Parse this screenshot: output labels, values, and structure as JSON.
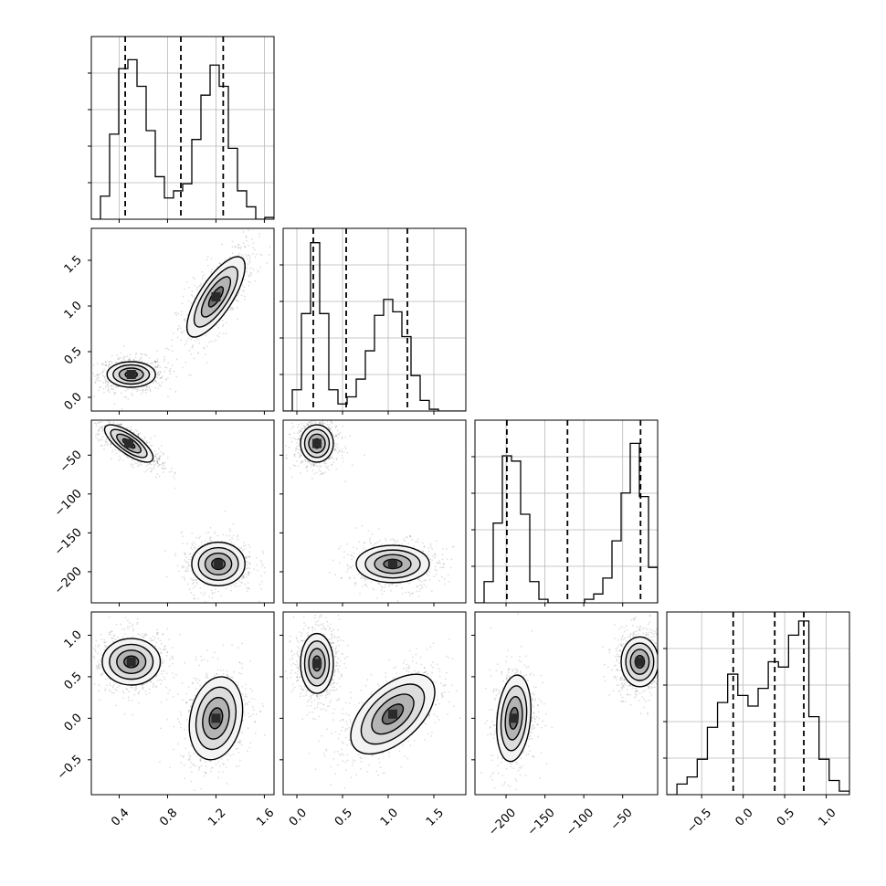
{
  "chart_data": [
    {
      "panel": "marginal-0",
      "type": "histogram",
      "x_range": [
        0.17,
        1.68
      ],
      "x_ticks": [
        0.4,
        0.8,
        1.2,
        1.6
      ],
      "x_tick_labels": [
        "0.4",
        "0.8",
        "1.2",
        "1.6"
      ],
      "y_range": [
        0,
        1
      ],
      "values": [
        0.0,
        0.13,
        0.48,
        0.85,
        0.9,
        0.75,
        0.5,
        0.24,
        0.12,
        0.16,
        0.2,
        0.45,
        0.7,
        0.87,
        0.75,
        0.4,
        0.16,
        0.07,
        0.0,
        0.01
      ],
      "quantile_lines": [
        0.45,
        0.91,
        1.26
      ],
      "grid": true
    },
    {
      "panel": "marginal-1",
      "type": "histogram",
      "x_range": [
        -0.15,
        1.85
      ],
      "x_ticks": [
        0.0,
        0.5,
        1.0,
        1.5
      ],
      "x_tick_labels": [
        "0.0",
        "0.5",
        "1.0",
        "1.5"
      ],
      "y_range": [
        0,
        1
      ],
      "values": [
        0.0,
        0.12,
        0.55,
        0.95,
        0.55,
        0.12,
        0.04,
        0.08,
        0.18,
        0.34,
        0.54,
        0.63,
        0.56,
        0.42,
        0.2,
        0.06,
        0.01,
        0.0,
        0.0,
        0.0
      ],
      "quantile_lines": [
        0.18,
        0.54,
        1.21
      ],
      "grid": true
    },
    {
      "panel": "marginal-2",
      "type": "histogram",
      "x_range": [
        -240,
        -5
      ],
      "x_ticks": [
        -200,
        -150,
        -100,
        -50
      ],
      "x_tick_labels": [
        "−200",
        "−150",
        "−100",
        "−50"
      ],
      "y_range": [
        0,
        1
      ],
      "values": [
        0.0,
        0.12,
        0.45,
        0.83,
        0.8,
        0.5,
        0.12,
        0.02,
        0.0,
        0.0,
        0.0,
        0.0,
        0.02,
        0.05,
        0.14,
        0.35,
        0.62,
        0.9,
        0.6,
        0.2
      ],
      "quantile_lines": [
        -199,
        -121,
        -27
      ],
      "grid": true
    },
    {
      "panel": "marginal-3",
      "type": "histogram",
      "x_range": [
        -0.92,
        1.28
      ],
      "x_ticks": [
        -0.5,
        0.0,
        0.5,
        1.0
      ],
      "x_tick_labels": [
        "−0.5",
        "0.0",
        "0.5",
        "1.0"
      ],
      "y_range": [
        0,
        1
      ],
      "values": [
        0.0,
        0.06,
        0.1,
        0.2,
        0.38,
        0.52,
        0.68,
        0.56,
        0.5,
        0.6,
        0.75,
        0.72,
        0.9,
        0.98,
        0.44,
        0.2,
        0.08,
        0.02
      ],
      "quantile_lines": [
        -0.12,
        0.38,
        0.73
      ],
      "grid": true
    },
    {
      "panel": "joint-1-0",
      "type": "scatter-contour",
      "x_range": [
        0.17,
        1.68
      ],
      "y_range": [
        -0.15,
        1.85
      ],
      "y_ticks": [
        0.0,
        0.5,
        1.0,
        1.5
      ],
      "y_tick_labels": [
        "0.0",
        "0.5",
        "1.0",
        "1.5"
      ],
      "modes": [
        {
          "center": [
            0.5,
            0.25
          ],
          "sigma": [
            0.1,
            0.07
          ],
          "rho": 0.0,
          "weight": 0.55
        },
        {
          "center": [
            1.2,
            1.1
          ],
          "sigma": [
            0.12,
            0.22
          ],
          "rho": 0.75,
          "weight": 0.45
        }
      ]
    },
    {
      "panel": "joint-2-0",
      "type": "scatter-contour",
      "x_range": [
        0.17,
        1.68
      ],
      "y_range": [
        -240,
        -5
      ],
      "y_ticks": [
        -50,
        -100,
        -150,
        -200
      ],
      "y_tick_labels": [
        "−50",
        "−100",
        "−150",
        "−200"
      ],
      "modes": [
        {
          "center": [
            0.48,
            -35
          ],
          "sigma": [
            0.1,
            12
          ],
          "rho": -0.75,
          "weight": 0.55
        },
        {
          "center": [
            1.22,
            -190
          ],
          "sigma": [
            0.11,
            14
          ],
          "rho": 0.0,
          "weight": 0.45
        }
      ]
    },
    {
      "panel": "joint-2-1",
      "type": "scatter-contour",
      "x_range": [
        -0.15,
        1.85
      ],
      "y_range": [
        -240,
        -5
      ],
      "modes": [
        {
          "center": [
            0.22,
            -35
          ],
          "sigma": [
            0.09,
            12
          ],
          "rho": 0.0,
          "weight": 0.55
        },
        {
          "center": [
            1.05,
            -190
          ],
          "sigma": [
            0.2,
            12
          ],
          "rho": 0.0,
          "weight": 0.45
        }
      ]
    },
    {
      "panel": "joint-3-0",
      "type": "scatter-contour",
      "x_range": [
        0.17,
        1.68
      ],
      "y_range": [
        -0.92,
        1.28
      ],
      "y_ticks": [
        1.0,
        0.5,
        0.0,
        -0.5
      ],
      "y_tick_labels": [
        "1.0",
        "0.5",
        "0.0",
        "−0.5"
      ],
      "modes": [
        {
          "center": [
            0.5,
            0.68
          ],
          "sigma": [
            0.12,
            0.14
          ],
          "rho": 0.0,
          "weight": 0.55
        },
        {
          "center": [
            1.2,
            0.0
          ],
          "sigma": [
            0.11,
            0.25
          ],
          "rho": 0.2,
          "weight": 0.45
        }
      ]
    },
    {
      "panel": "joint-3-1",
      "type": "scatter-contour",
      "x_range": [
        -0.15,
        1.85
      ],
      "y_range": [
        -0.92,
        1.28
      ],
      "modes": [
        {
          "center": [
            0.22,
            0.66
          ],
          "sigma": [
            0.09,
            0.18
          ],
          "rho": 0.0,
          "weight": 0.55
        },
        {
          "center": [
            1.05,
            0.05
          ],
          "sigma": [
            0.23,
            0.24
          ],
          "rho": 0.55,
          "weight": 0.45
        }
      ]
    },
    {
      "panel": "joint-3-2",
      "type": "scatter-contour",
      "x_range": [
        -240,
        -5
      ],
      "y_range": [
        -0.92,
        1.28
      ],
      "modes": [
        {
          "center": [
            -190,
            0.0
          ],
          "sigma": [
            11,
            0.26
          ],
          "rho": 0.2,
          "weight": 0.45
        },
        {
          "center": [
            -28,
            0.68
          ],
          "sigma": [
            12,
            0.15
          ],
          "rho": 0.0,
          "weight": 0.55
        }
      ]
    }
  ]
}
